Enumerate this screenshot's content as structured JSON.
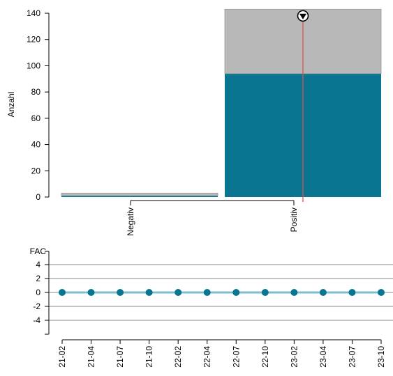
{
  "chart_data": [
    {
      "type": "bar",
      "stacked": true,
      "ylabel": "Anzahl",
      "xlabel": "",
      "ylim": [
        0,
        140
      ],
      "yticks": [
        0,
        20,
        40,
        60,
        80,
        100,
        120,
        140
      ],
      "categories": [
        "Negativ",
        "Positiv"
      ],
      "series": [
        {
          "name": "",
          "color": "#0a7591",
          "values": [
            1,
            94
          ]
        },
        {
          "name": "",
          "color": "#b8b8b8",
          "values": [
            2,
            49
          ]
        }
      ],
      "marker": {
        "category": "Positiv",
        "value": 138,
        "line_color": "#e05050",
        "icon": "down-arrow-circle-icon"
      },
      "grid": false
    },
    {
      "type": "line",
      "ylabel": "FAC",
      "xlabel": "",
      "ylim": [
        -6,
        5
      ],
      "yticks": [
        4,
        2,
        0,
        -2,
        -4
      ],
      "gridlines": [
        4,
        2,
        0,
        -2,
        -4
      ],
      "categories": [
        "21-02",
        "21-04",
        "21-07",
        "21-10",
        "22-02",
        "22-04",
        "22-07",
        "22-10",
        "23-02",
        "23-04",
        "23-07",
        "23-10"
      ],
      "series": [
        {
          "name": "",
          "color": "#0a7591",
          "values": [
            0,
            0,
            0,
            0,
            0,
            0,
            0,
            0,
            0,
            0,
            0,
            0
          ]
        }
      ],
      "grid": true
    }
  ]
}
